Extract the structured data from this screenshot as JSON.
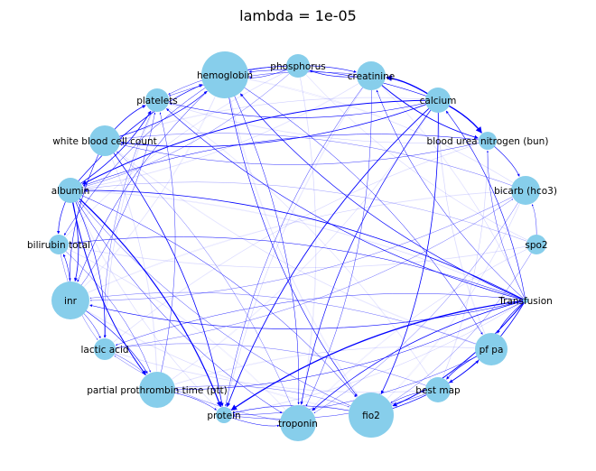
{
  "title": "lambda = 1e-05",
  "colors": {
    "node": "#87ceeb",
    "edge": "#0000ff",
    "text": "#000000",
    "background": "#ffffff"
  },
  "nodes": [
    {
      "id": "hemoglobin",
      "label": "hemoglobin"
    },
    {
      "id": "phosphorus",
      "label": "phosphorus"
    },
    {
      "id": "creatinine",
      "label": "creatinine"
    },
    {
      "id": "calcium",
      "label": "calcium"
    },
    {
      "id": "bun",
      "label": "blood urea nitrogen (bun)"
    },
    {
      "id": "hco3",
      "label": "bicarb (hco3)"
    },
    {
      "id": "spo2",
      "label": "spo2"
    },
    {
      "id": "transfusion",
      "label": "Transfusion"
    },
    {
      "id": "pfpa",
      "label": "pf pa"
    },
    {
      "id": "bestmap",
      "label": "best map"
    },
    {
      "id": "fio2",
      "label": "fio2"
    },
    {
      "id": "troponin",
      "label": "troponin"
    },
    {
      "id": "protein",
      "label": "protein"
    },
    {
      "id": "ptt",
      "label": "partial prothrombin time (ptt)"
    },
    {
      "id": "lactic",
      "label": "lactic acid"
    },
    {
      "id": "inr",
      "label": "inr"
    },
    {
      "id": "bilirubin",
      "label": "bilirubin total"
    },
    {
      "id": "albumin",
      "label": "albumin"
    },
    {
      "id": "wbc",
      "label": "white blood cell count"
    },
    {
      "id": "platelets",
      "label": "platelets"
    }
  ]
}
